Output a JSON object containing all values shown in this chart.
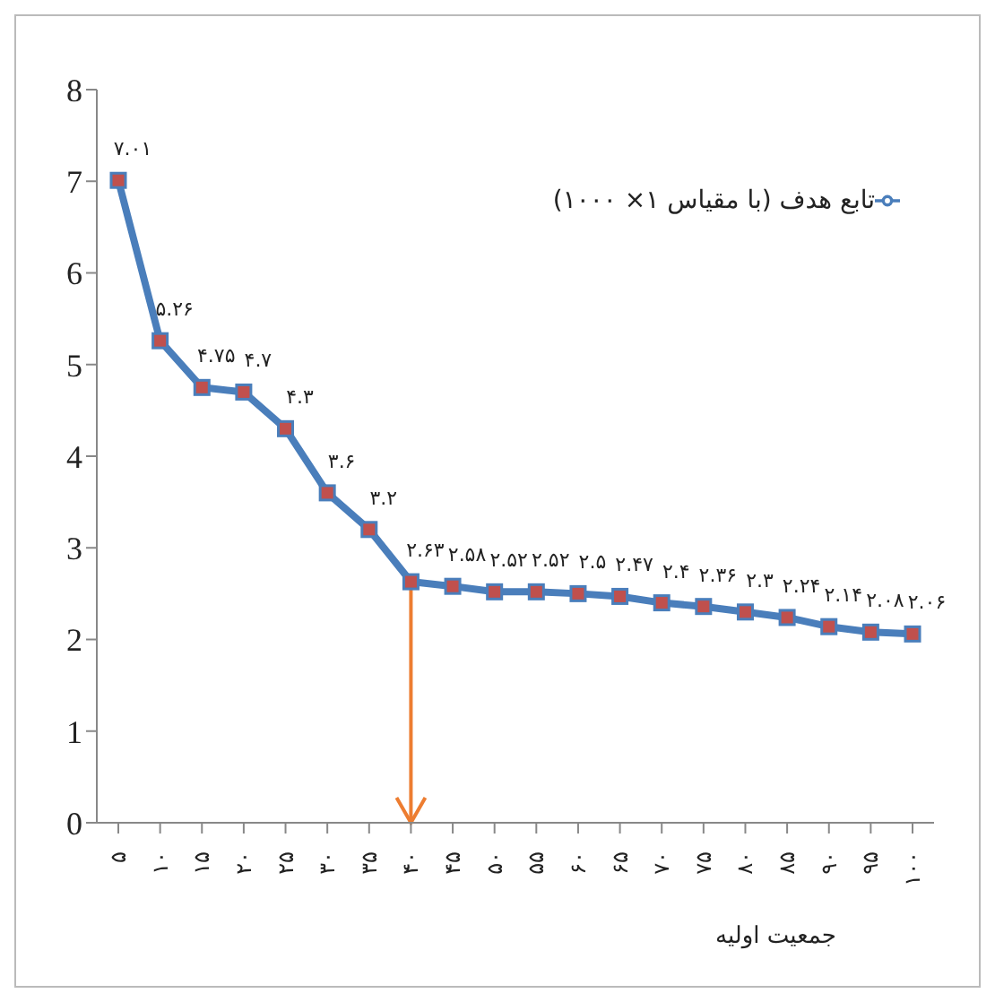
{
  "chart_data": {
    "type": "line",
    "xlabel": "جمعیت اولیه",
    "categories": [
      "۵",
      "۱۰",
      "۱۵",
      "۲۰",
      "۲۵",
      "۳۰",
      "۳۵",
      "۴۰",
      "۴۵",
      "۵۰",
      "۵۵",
      "۶۰",
      "۶۵",
      "۷۰",
      "۷۵",
      "۸۰",
      "۸۵",
      "۹۰",
      "۹۵",
      "۱۰۰"
    ],
    "series": [
      {
        "name": "تابع هدف (با مقیاس ۱× ۱۰۰۰)",
        "color": "#4a7ebb",
        "values": [
          7.01,
          5.26,
          4.75,
          4.7,
          4.3,
          3.6,
          3.2,
          2.63,
          2.58,
          2.52,
          2.52,
          2.5,
          2.47,
          2.4,
          2.36,
          2.3,
          2.24,
          2.14,
          2.08,
          2.06
        ],
        "value_labels": [
          "۷.۰۱",
          "۵.۲۶",
          "۴.۷۵",
          "۴.۷",
          "۴.۳",
          "۳.۶",
          "۳.۲",
          "۲.۶۳",
          "۲.۵۸",
          "۲.۵۲",
          "۲.۵۲",
          "۲.۵",
          "۲.۴۷",
          "۲.۴",
          "۲.۳۶",
          "۲.۳",
          "۲.۲۴",
          "۲.۱۴",
          "۲.۰۸",
          "۲.۰۶"
        ]
      }
    ],
    "ylim": [
      0,
      8
    ],
    "yticks": [
      0,
      1,
      2,
      3,
      4,
      5,
      6,
      7,
      8
    ],
    "grid": false,
    "legend": "top right",
    "marker": "square",
    "line_style": "solid",
    "ref_lines": [
      {
        "axis": "x",
        "value": "۴۰",
        "color": "#ed7d31"
      }
    ]
  }
}
